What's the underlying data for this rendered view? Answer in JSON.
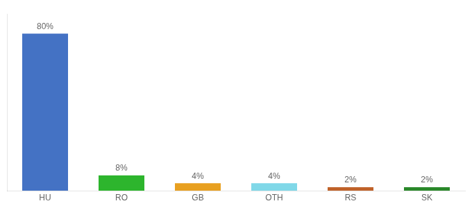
{
  "chart_data": {
    "type": "bar",
    "categories": [
      "HU",
      "RO",
      "GB",
      "OTH",
      "RS",
      "SK"
    ],
    "values": [
      80,
      8,
      4,
      4,
      2,
      2
    ],
    "value_labels": [
      "80%",
      "8%",
      "4%",
      "4%",
      "2%",
      "2%"
    ],
    "colors": [
      "#4472c4",
      "#2db52d",
      "#e8a020",
      "#80d8e8",
      "#c0622a",
      "#2a882a"
    ],
    "ylim": [
      0,
      90
    ],
    "data_labels": true,
    "tick_labels": "x",
    "grid": false
  }
}
